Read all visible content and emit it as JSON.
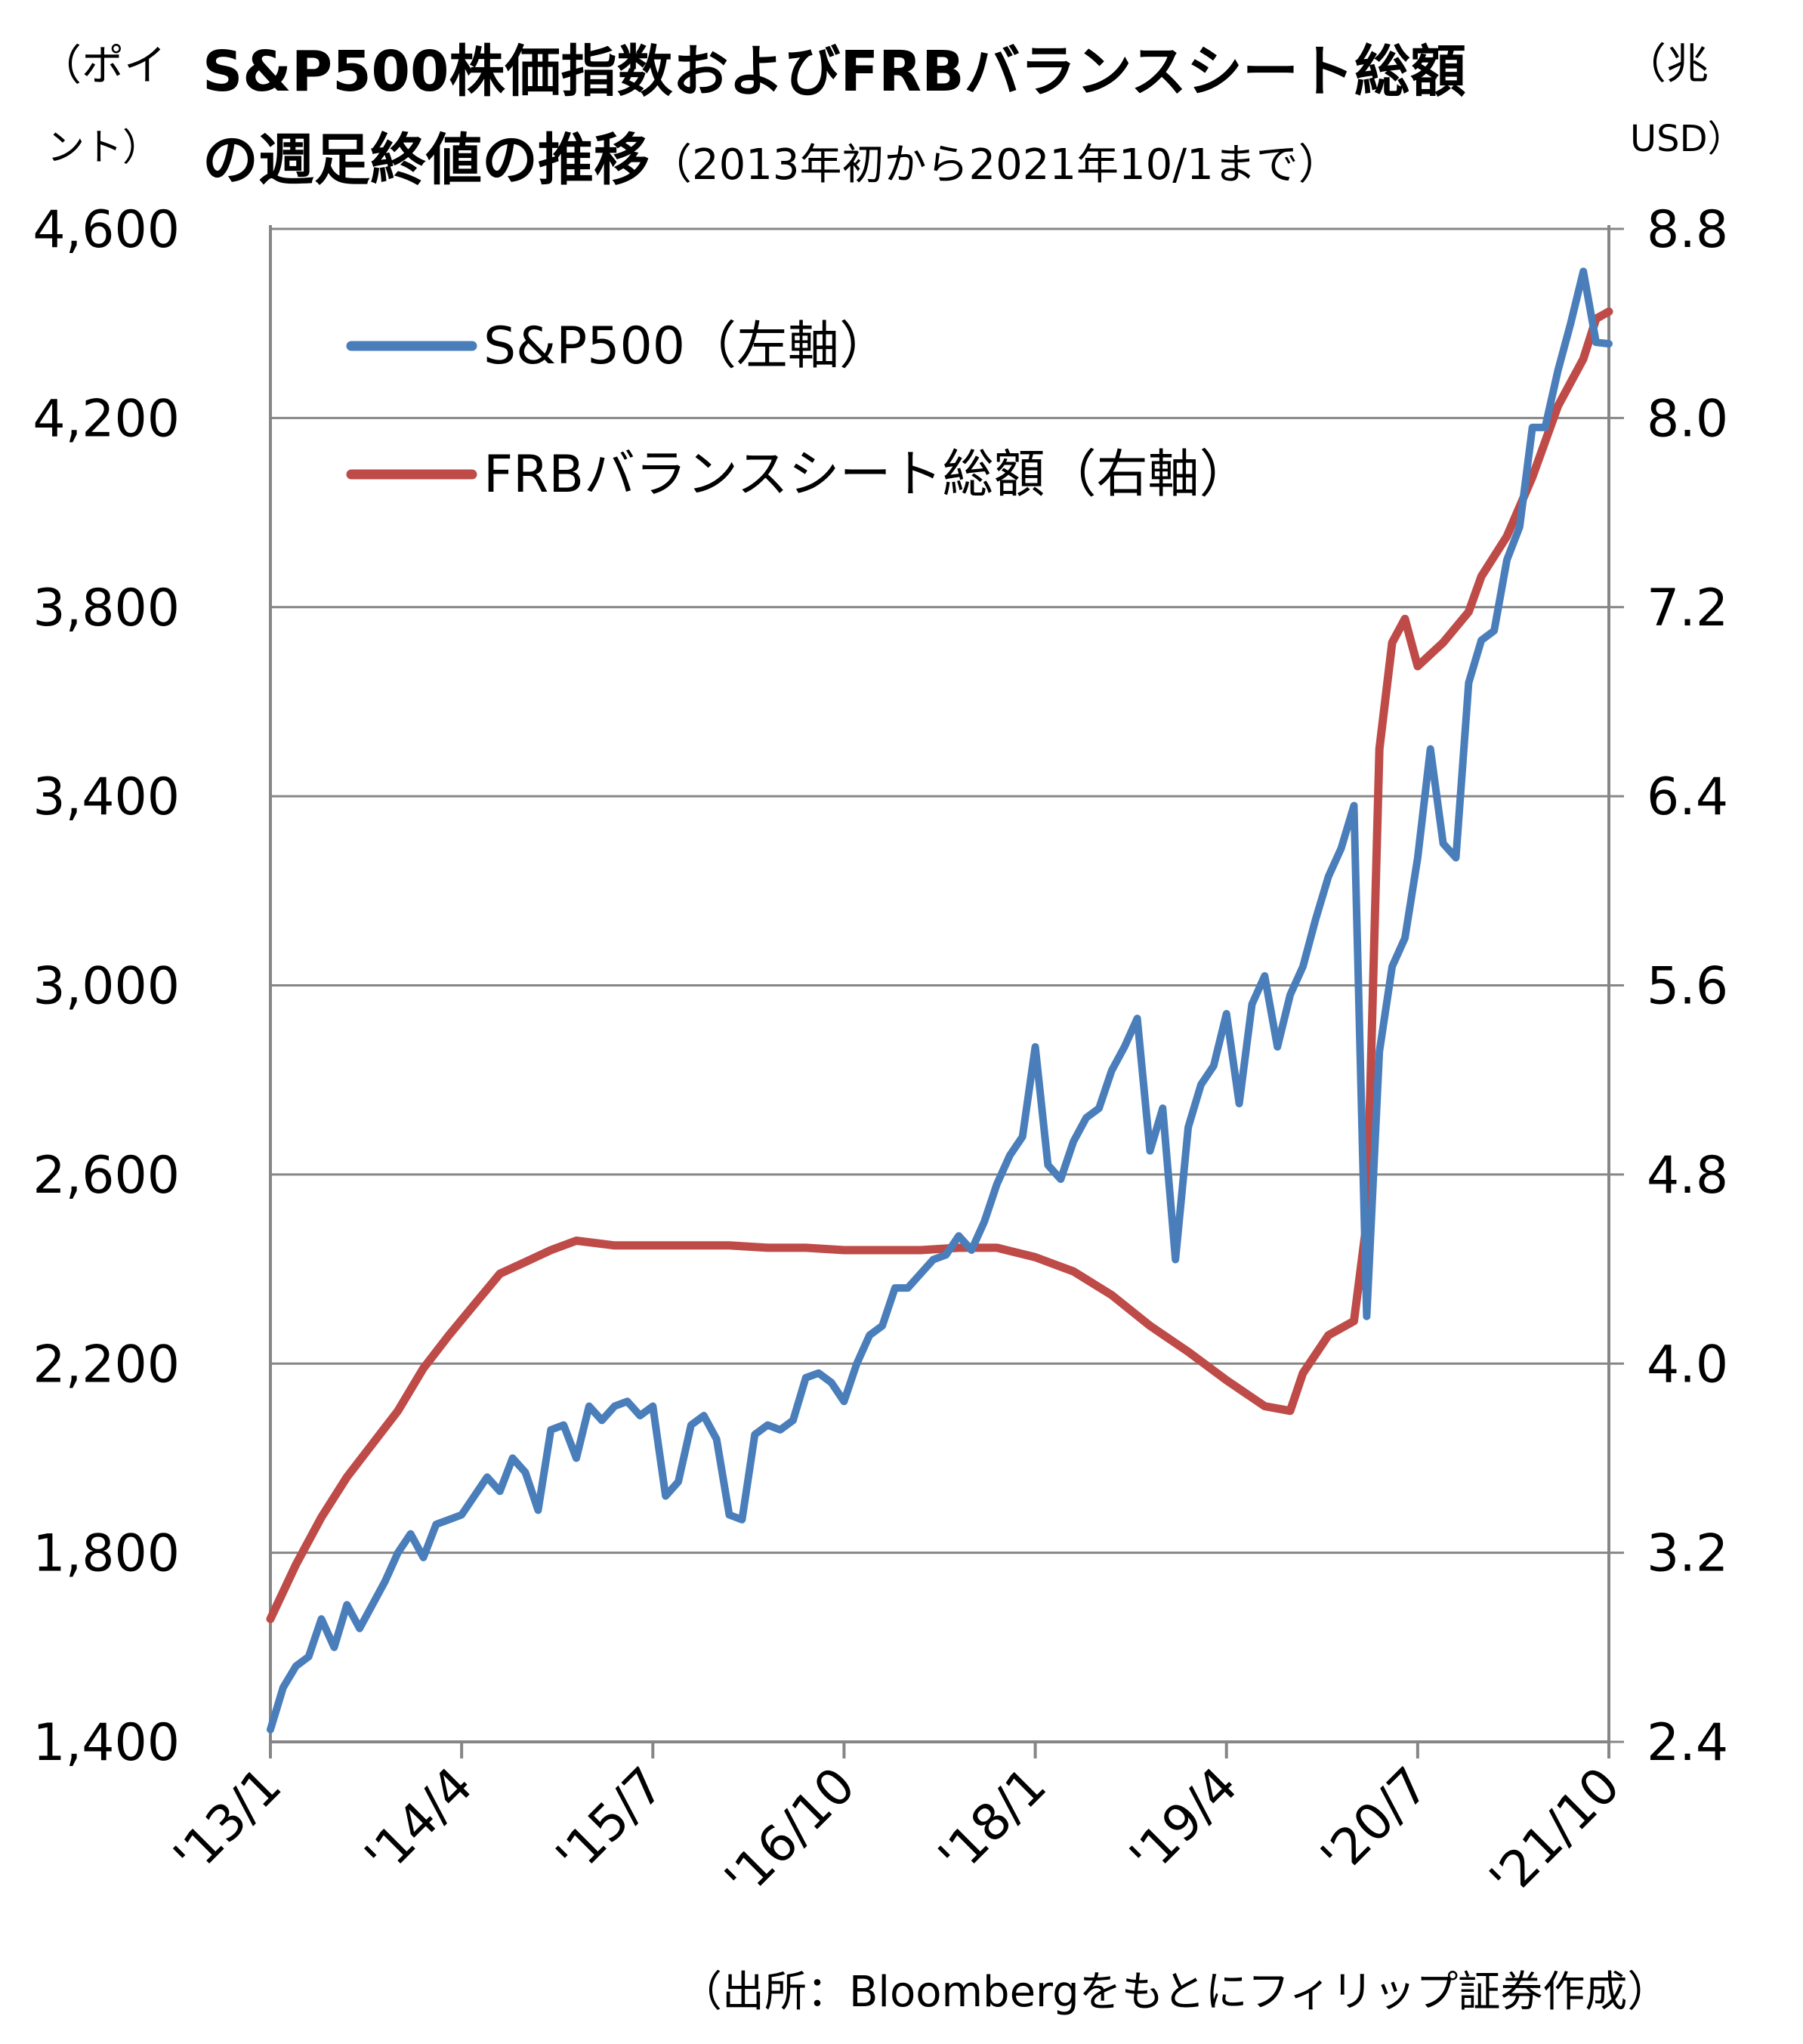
{
  "title": {
    "line1": "S&P500株価指数およびFRBバランスシート総額",
    "line2": "の週足終値の推移",
    "line2_sub": "（2013年初から2021年10/1まで）"
  },
  "left_unit": {
    "line1": "（ポイ",
    "line2": "ント）"
  },
  "right_unit": {
    "line1": "（兆",
    "line2": "USD）"
  },
  "source": "（出所：Bloombergをもとにフィリップ証券作成）",
  "colors": {
    "sp500": "#4a7ebb",
    "frb": "#be4b48",
    "grid": "#868686"
  },
  "chart_data": {
    "type": "line",
    "x_ticks": [
      "'13/1",
      "'14/4",
      "'15/7",
      "'16/10",
      "'18/1",
      "'19/4",
      "'20/7",
      "'21/10"
    ],
    "x_range": [
      "2013-01",
      "2021-10"
    ],
    "y_left": {
      "label": "（ポイント）",
      "ticks": [
        "1,400",
        "1,800",
        "2,200",
        "2,600",
        "3,000",
        "3,400",
        "3,800",
        "4,200",
        "4,600"
      ],
      "range": [
        1400,
        4600
      ]
    },
    "y_right": {
      "label": "（兆USD）",
      "ticks": [
        "2.4",
        "3.2",
        "4.0",
        "4.8",
        "5.6",
        "6.4",
        "7.2",
        "8.0",
        "8.8"
      ],
      "range": [
        2.4,
        8.8
      ]
    },
    "grid": true,
    "legend_position": "top-left",
    "series": [
      {
        "name": "S&P500（左軸）",
        "axis": "left",
        "points": [
          [
            "2013-01",
            1426
          ],
          [
            "2013-02",
            1515
          ],
          [
            "2013-03",
            1560
          ],
          [
            "2013-04",
            1580
          ],
          [
            "2013-05",
            1660
          ],
          [
            "2013-06",
            1600
          ],
          [
            "2013-07",
            1690
          ],
          [
            "2013-08",
            1640
          ],
          [
            "2013-09",
            1690
          ],
          [
            "2013-10",
            1740
          ],
          [
            "2013-11",
            1800
          ],
          [
            "2013-12",
            1840
          ],
          [
            "2014-01",
            1790
          ],
          [
            "2014-02",
            1860
          ],
          [
            "2014-03",
            1870
          ],
          [
            "2014-04",
            1880
          ],
          [
            "2014-05",
            1920
          ],
          [
            "2014-06",
            1960
          ],
          [
            "2014-07",
            1930
          ],
          [
            "2014-08",
            2000
          ],
          [
            "2014-09",
            1970
          ],
          [
            "2014-10",
            1890
          ],
          [
            "2014-11",
            2060
          ],
          [
            "2014-12",
            2070
          ],
          [
            "2015-01",
            2000
          ],
          [
            "2015-02",
            2110
          ],
          [
            "2015-03",
            2080
          ],
          [
            "2015-04",
            2110
          ],
          [
            "2015-05",
            2120
          ],
          [
            "2015-06",
            2090
          ],
          [
            "2015-07",
            2110
          ],
          [
            "2015-08",
            1920
          ],
          [
            "2015-09",
            1950
          ],
          [
            "2015-10",
            2070
          ],
          [
            "2015-11",
            2090
          ],
          [
            "2015-12",
            2040
          ],
          [
            "2016-01",
            1880
          ],
          [
            "2016-02",
            1870
          ],
          [
            "2016-03",
            2050
          ],
          [
            "2016-04",
            2070
          ],
          [
            "2016-05",
            2060
          ],
          [
            "2016-06",
            2080
          ],
          [
            "2016-07",
            2170
          ],
          [
            "2016-08",
            2180
          ],
          [
            "2016-09",
            2160
          ],
          [
            "2016-10",
            2120
          ],
          [
            "2016-11",
            2200
          ],
          [
            "2016-12",
            2260
          ],
          [
            "2017-01",
            2280
          ],
          [
            "2017-02",
            2360
          ],
          [
            "2017-03",
            2360
          ],
          [
            "2017-04",
            2390
          ],
          [
            "2017-05",
            2420
          ],
          [
            "2017-06",
            2430
          ],
          [
            "2017-07",
            2470
          ],
          [
            "2017-08",
            2440
          ],
          [
            "2017-09",
            2500
          ],
          [
            "2017-10",
            2580
          ],
          [
            "2017-11",
            2640
          ],
          [
            "2017-12",
            2680
          ],
          [
            "2018-01",
            2870
          ],
          [
            "2018-02",
            2620
          ],
          [
            "2018-03",
            2590
          ],
          [
            "2018-04",
            2670
          ],
          [
            "2018-05",
            2720
          ],
          [
            "2018-06",
            2740
          ],
          [
            "2018-07",
            2820
          ],
          [
            "2018-08",
            2870
          ],
          [
            "2018-09",
            2930
          ],
          [
            "2018-10",
            2650
          ],
          [
            "2018-11",
            2740
          ],
          [
            "2018-12",
            2420
          ],
          [
            "2019-01",
            2700
          ],
          [
            "2019-02",
            2790
          ],
          [
            "2019-03",
            2830
          ],
          [
            "2019-04",
            2940
          ],
          [
            "2019-05",
            2750
          ],
          [
            "2019-06",
            2960
          ],
          [
            "2019-07",
            3020
          ],
          [
            "2019-08",
            2870
          ],
          [
            "2019-09",
            2980
          ],
          [
            "2019-10",
            3040
          ],
          [
            "2019-11",
            3140
          ],
          [
            "2019-12",
            3230
          ],
          [
            "2020-01",
            3290
          ],
          [
            "2020-02",
            3380
          ],
          [
            "2020-03",
            2300
          ],
          [
            "2020-04",
            2860
          ],
          [
            "2020-05",
            3040
          ],
          [
            "2020-06",
            3100
          ],
          [
            "2020-07",
            3270
          ],
          [
            "2020-08",
            3500
          ],
          [
            "2020-09",
            3300
          ],
          [
            "2020-10",
            3270
          ],
          [
            "2020-11",
            3640
          ],
          [
            "2020-12",
            3730
          ],
          [
            "2021-01",
            3750
          ],
          [
            "2021-02",
            3900
          ],
          [
            "2021-03",
            3970
          ],
          [
            "2021-04",
            4180
          ],
          [
            "2021-05",
            4180
          ],
          [
            "2021-06",
            4300
          ],
          [
            "2021-07",
            4400
          ],
          [
            "2021-08",
            4510
          ],
          [
            "2021-09",
            4360
          ],
          [
            "2021-10",
            4357
          ]
        ]
      },
      {
        "name": "FRBバランスシート総額（右軸）",
        "axis": "right",
        "points": [
          [
            "2013-01",
            2.92
          ],
          [
            "2013-03",
            3.15
          ],
          [
            "2013-05",
            3.35
          ],
          [
            "2013-07",
            3.52
          ],
          [
            "2013-09",
            3.66
          ],
          [
            "2013-11",
            3.8
          ],
          [
            "2014-01",
            3.98
          ],
          [
            "2014-03",
            4.12
          ],
          [
            "2014-05",
            4.25
          ],
          [
            "2014-07",
            4.38
          ],
          [
            "2014-09",
            4.43
          ],
          [
            "2014-11",
            4.48
          ],
          [
            "2015-01",
            4.52
          ],
          [
            "2015-04",
            4.5
          ],
          [
            "2015-07",
            4.5
          ],
          [
            "2015-10",
            4.5
          ],
          [
            "2016-01",
            4.5
          ],
          [
            "2016-04",
            4.49
          ],
          [
            "2016-07",
            4.49
          ],
          [
            "2016-10",
            4.48
          ],
          [
            "2017-01",
            4.48
          ],
          [
            "2017-04",
            4.48
          ],
          [
            "2017-07",
            4.49
          ],
          [
            "2017-10",
            4.49
          ],
          [
            "2018-01",
            4.45
          ],
          [
            "2018-04",
            4.39
          ],
          [
            "2018-07",
            4.29
          ],
          [
            "2018-10",
            4.16
          ],
          [
            "2019-01",
            4.05
          ],
          [
            "2019-04",
            3.93
          ],
          [
            "2019-07",
            3.82
          ],
          [
            "2019-09",
            3.8
          ],
          [
            "2019-10",
            3.96
          ],
          [
            "2019-12",
            4.12
          ],
          [
            "2020-02",
            4.18
          ],
          [
            "2020-03",
            4.6
          ],
          [
            "2020-04",
            6.6
          ],
          [
            "2020-05",
            7.05
          ],
          [
            "2020-06",
            7.15
          ],
          [
            "2020-07",
            6.95
          ],
          [
            "2020-08",
            7.0
          ],
          [
            "2020-09",
            7.05
          ],
          [
            "2020-11",
            7.18
          ],
          [
            "2020-12",
            7.33
          ],
          [
            "2021-02",
            7.5
          ],
          [
            "2021-04",
            7.75
          ],
          [
            "2021-06",
            8.05
          ],
          [
            "2021-08",
            8.25
          ],
          [
            "2021-09",
            8.42
          ],
          [
            "2021-10",
            8.45
          ]
        ]
      }
    ]
  }
}
